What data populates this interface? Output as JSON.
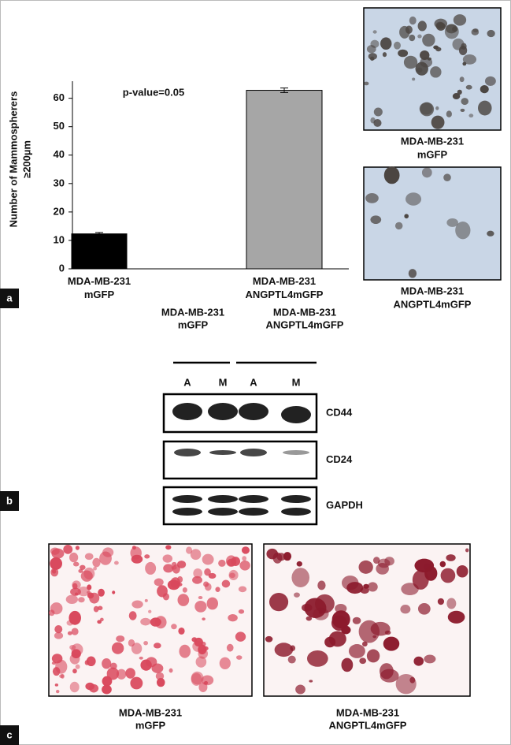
{
  "chart_data": {
    "type": "bar",
    "y_label": [
      "Number of Mammospherers",
      "≥200µm"
    ],
    "annotation": "p-value=0.05",
    "categories": [
      "MDA-MB-231 mGFP",
      "MDA-MB-231 ANGPTL4mGFP"
    ],
    "values": [
      12.3,
      62.8
    ],
    "errors": [
      0.5,
      0.8
    ],
    "colors": [
      "#000000",
      "#a6a6a6"
    ],
    "ylim": [
      0,
      66
    ],
    "yticks": [
      0,
      10,
      20,
      30,
      40,
      50,
      60
    ]
  },
  "panel_labels": [
    "a",
    "b",
    "c"
  ],
  "panel_a_images": [
    {
      "caption": [
        "MDA-MB-231",
        "mGFP"
      ]
    },
    {
      "caption": [
        "MDA-MB-231",
        "ANGPTL4mGFP"
      ]
    }
  ],
  "blot": {
    "groups": [
      [
        "MDA-MB-231",
        "mGFP"
      ],
      [
        "MDA-MB-231",
        "ANGPTL4mGFP"
      ]
    ],
    "lanes": [
      "A",
      "M",
      "A",
      "M"
    ],
    "rows": [
      "CD44",
      "CD24",
      "GAPDH"
    ]
  },
  "panel_c_images": [
    {
      "caption": [
        "MDA-MB-231",
        "mGFP"
      ]
    },
    {
      "caption": [
        "MDA-MB-231",
        "ANGPTL4mGFP"
      ]
    }
  ]
}
